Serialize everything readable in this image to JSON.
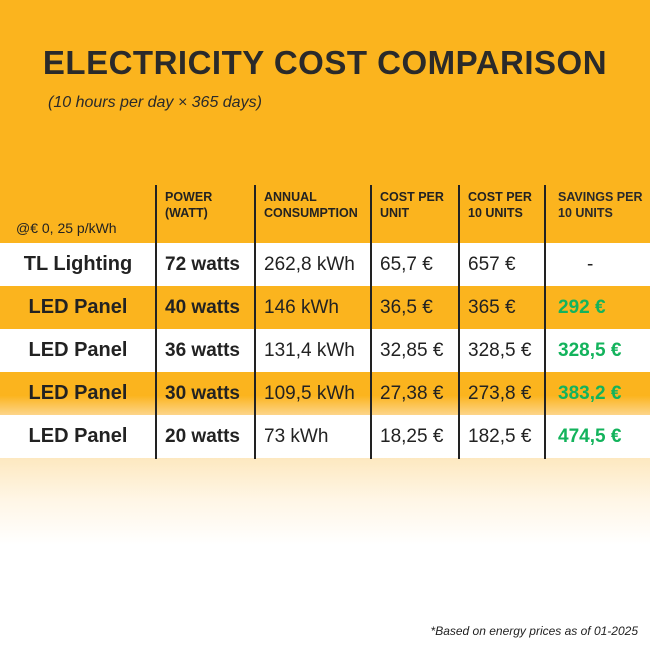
{
  "title": "ELECTRICITY COST COMPARISON",
  "subtitle": "(10 hours per day × 365 days)",
  "table": {
    "headers": [
      "@€ 0, 25 p/kWh",
      "POWER (WATT)",
      "ANNUAL CONSUMPTION",
      "COST PER UNIT",
      "COST PER 10 UNITS",
      "SAVINGS PER 10 UNITS"
    ],
    "rows": [
      [
        "TL Lighting",
        "72 watts",
        "262,8 kWh",
        "65,7 €",
        "657 €",
        "-"
      ],
      [
        "LED Panel",
        "40 watts",
        "146 kWh",
        "36,5 €",
        "365 €",
        "292 €"
      ],
      [
        "LED Panel",
        "36 watts",
        "131,4 kWh",
        "32,85 €",
        "328,5 €",
        "328,5 €"
      ],
      [
        "LED Panel",
        "30 watts",
        "109,5 kWh",
        "27,38 €",
        "273,8 €",
        "383,2 €"
      ],
      [
        "LED Panel",
        "20 watts",
        "73 kWh",
        "18,25 €",
        "182,5 €",
        "474,5 €"
      ]
    ]
  },
  "footnote": "*Based on energy prices as of 01-2025",
  "colors": {
    "background": "#fbb41e",
    "savings": "#13b35c",
    "text": "#222222"
  }
}
